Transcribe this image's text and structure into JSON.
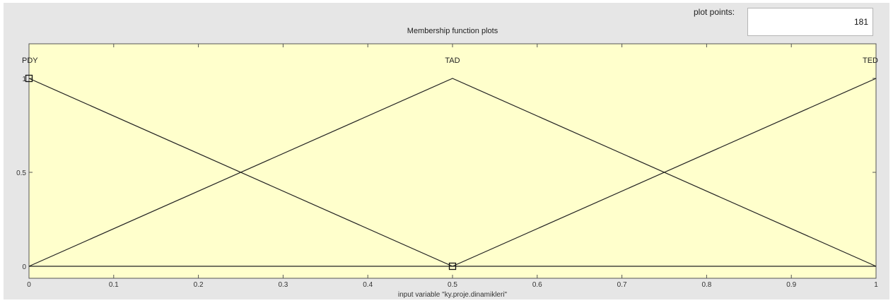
{
  "plot_points": {
    "label": "plot points:",
    "value": "181"
  },
  "chart_data": {
    "type": "line",
    "title": "Membership function plots",
    "xlabel": "input variable \"ky.proje.dinamikleri\"",
    "ylabel": "",
    "xlim": [
      0,
      1
    ],
    "ylim": [
      0,
      1
    ],
    "x_ticks": [
      "0",
      "0.1",
      "0.2",
      "0.3",
      "0.4",
      "0.5",
      "0.6",
      "0.7",
      "0.8",
      "0.9",
      "1"
    ],
    "y_ticks": [
      "0",
      "0.5",
      "1"
    ],
    "background": "#ffffcc",
    "line_color": "#222222",
    "series": [
      {
        "name": "PDY",
        "label_x": 0,
        "x": [
          0,
          0.5
        ],
        "y": [
          1,
          0
        ]
      },
      {
        "name": "TAD",
        "label_x": 0.5,
        "x": [
          0,
          0.5,
          1
        ],
        "y": [
          0,
          1,
          0
        ]
      },
      {
        "name": "TED",
        "label_x": 1,
        "x": [
          0.5,
          1
        ],
        "y": [
          0,
          1
        ]
      }
    ],
    "markers": [
      {
        "x": 0,
        "y": 1
      },
      {
        "x": 0.5,
        "y": 0
      }
    ]
  }
}
